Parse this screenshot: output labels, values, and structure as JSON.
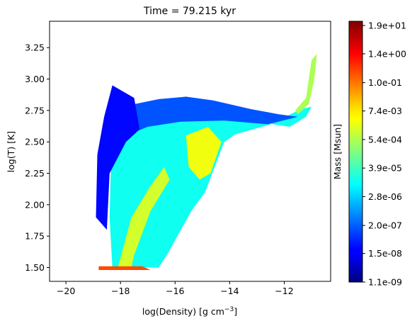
{
  "chart_data": {
    "type": "heatmap",
    "title": "Time = 79.215 kyr",
    "xlabel_main": "log(Density) [g cm",
    "xlabel_sup": "−3",
    "xlabel_end": "]",
    "ylabel": "log(T) [K]",
    "xlim": [
      -20.6,
      -10.3
    ],
    "ylim": [
      1.39,
      3.46
    ],
    "x_ticks": [
      -20,
      -18,
      -16,
      -14,
      -12
    ],
    "x_tick_labels": [
      "−20",
      "−18",
      "−16",
      "−14",
      "−12"
    ],
    "y_ticks": [
      1.5,
      1.75,
      2.0,
      2.25,
      2.5,
      2.75,
      3.0,
      3.25
    ],
    "y_tick_labels": [
      "1.50",
      "1.75",
      "2.00",
      "2.25",
      "2.50",
      "2.75",
      "3.00",
      "3.25"
    ],
    "colorbar": {
      "label": "Mass [Msun]",
      "colormap": "jet",
      "scale": "log",
      "range_log10": [
        -8.96,
        1.45
      ],
      "ticks_log10": [
        -8.96,
        -7.82,
        -6.7,
        -5.55,
        -4.41,
        -3.27,
        -2.13,
        -1.0,
        0.15,
        1.28
      ],
      "tick_labels": [
        "1.1e-09",
        "1.5e-08",
        "2.0e-07",
        "2.8e-06",
        "3.9e-05",
        "5.4e-04",
        "7.4e-03",
        "1.0e-01",
        "1.4e+00",
        "1.9e+01"
      ]
    },
    "regions": [
      {
        "name": "main-body",
        "log10_mass": -4.9,
        "polygon": [
          [
            -18.3,
            1.5
          ],
          [
            -18.4,
            1.9
          ],
          [
            -18.35,
            2.3
          ],
          [
            -17.9,
            2.55
          ],
          [
            -16.5,
            2.66
          ],
          [
            -14.8,
            2.68
          ],
          [
            -13.0,
            2.66
          ],
          [
            -11.8,
            2.62
          ],
          [
            -11.2,
            2.7
          ],
          [
            -11.0,
            2.78
          ],
          [
            -11.4,
            2.76
          ],
          [
            -12.5,
            2.64
          ],
          [
            -13.8,
            2.56
          ],
          [
            -14.2,
            2.5
          ],
          [
            -14.9,
            2.1
          ],
          [
            -15.4,
            1.95
          ],
          [
            -16.3,
            1.6
          ],
          [
            -16.6,
            1.5
          ]
        ]
      },
      {
        "name": "upper-band",
        "log10_mass": -6.8,
        "polygon": [
          [
            -17.8,
            2.55
          ],
          [
            -17.5,
            2.8
          ],
          [
            -16.6,
            2.84
          ],
          [
            -15.6,
            2.86
          ],
          [
            -14.6,
            2.83
          ],
          [
            -13.2,
            2.76
          ],
          [
            -12.2,
            2.72
          ],
          [
            -11.5,
            2.7
          ],
          [
            -12.6,
            2.64
          ],
          [
            -14.2,
            2.67
          ],
          [
            -15.8,
            2.66
          ],
          [
            -17.0,
            2.62
          ]
        ]
      },
      {
        "name": "low-density-column",
        "log10_mass": -7.6,
        "polygon": [
          [
            -18.9,
            1.9
          ],
          [
            -18.85,
            2.4
          ],
          [
            -18.6,
            2.7
          ],
          [
            -18.3,
            2.95
          ],
          [
            -17.9,
            2.9
          ],
          [
            -17.5,
            2.85
          ],
          [
            -17.3,
            2.6
          ],
          [
            -17.8,
            2.5
          ],
          [
            -18.4,
            2.25
          ],
          [
            -18.5,
            1.8
          ]
        ]
      },
      {
        "name": "dense-core",
        "log10_mass": -2.6,
        "polygon": [
          [
            -15.6,
            2.55
          ],
          [
            -14.8,
            2.62
          ],
          [
            -14.3,
            2.5
          ],
          [
            -14.7,
            2.25
          ],
          [
            -15.1,
            2.2
          ],
          [
            -15.5,
            2.3
          ]
        ]
      },
      {
        "name": "diagonal-ridge",
        "log10_mass": -2.9,
        "polygon": [
          [
            -18.1,
            1.5
          ],
          [
            -17.6,
            1.9
          ],
          [
            -16.9,
            2.15
          ],
          [
            -16.4,
            2.3
          ],
          [
            -16.2,
            2.2
          ],
          [
            -16.9,
            1.95
          ],
          [
            -17.5,
            1.6
          ],
          [
            -17.6,
            1.5
          ]
        ]
      },
      {
        "name": "hot-tail",
        "log10_mass": -3.3,
        "polygon": [
          [
            -11.5,
            2.72
          ],
          [
            -11.1,
            2.8
          ],
          [
            -10.9,
            3.0
          ],
          [
            -10.8,
            3.2
          ],
          [
            -11.0,
            3.15
          ],
          [
            -11.2,
            2.85
          ],
          [
            -11.6,
            2.75
          ]
        ]
      },
      {
        "name": "floor",
        "log10_mass": -0.6,
        "polygon": [
          [
            -18.8,
            1.48
          ],
          [
            -18.8,
            1.51
          ],
          [
            -17.2,
            1.51
          ],
          [
            -16.9,
            1.48
          ]
        ]
      }
    ]
  }
}
